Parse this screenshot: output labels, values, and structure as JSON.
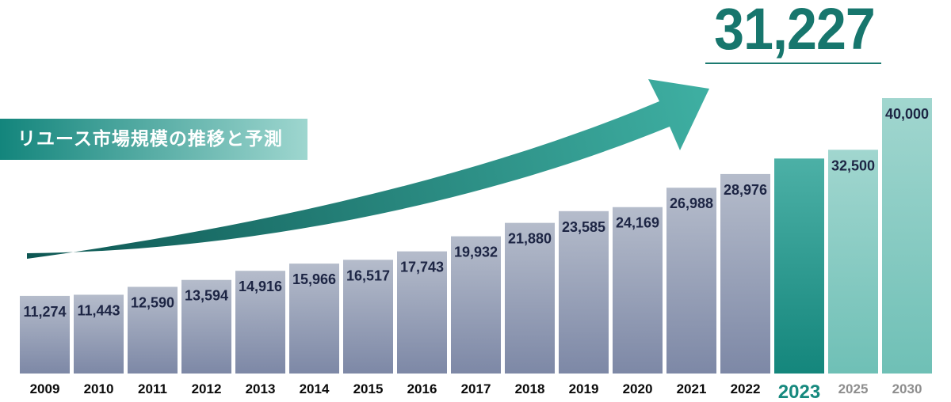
{
  "header": {
    "title": "リユース市場規模の推移と予測",
    "highlight_value": "31,227"
  },
  "colors": {
    "past_top": "#b5bccb",
    "past_bottom": "#7d88a6",
    "current_top": "#4cb0a6",
    "current_bottom": "#14867c",
    "forecast_top": "#a1d6cf",
    "forecast_bottom": "#6fc0b6",
    "label_dark": "#1d2544",
    "year_dark": "#0a0a0a",
    "year_current": "#16897e",
    "year_forecast": "#8e8e8e",
    "arrow_start": "#0d5652",
    "arrow_end": "#3fb0a3",
    "title_bg_start": "#13857c",
    "title_bg_end": "#9ed6cf",
    "highlight": "#17766d"
  },
  "chart_data": {
    "type": "bar",
    "title": "リユース市場規模の推移と予測",
    "categories": [
      "2009",
      "2010",
      "2011",
      "2012",
      "2013",
      "2014",
      "2015",
      "2016",
      "2017",
      "2018",
      "2019",
      "2020",
      "2021",
      "2022",
      "2023",
      "2025",
      "2030"
    ],
    "values": [
      11274,
      11443,
      12590,
      13594,
      14916,
      15966,
      16517,
      17743,
      19932,
      21880,
      23585,
      24169,
      26988,
      28976,
      31227,
      32500,
      40000
    ],
    "value_labels": [
      "11,274",
      "11,443",
      "12,590",
      "13,594",
      "14,916",
      "15,966",
      "16,517",
      "17,743",
      "19,932",
      "21,880",
      "23,585",
      "24,169",
      "26,988",
      "28,976",
      "",
      "32,500",
      "40,000"
    ],
    "kinds": [
      "past",
      "past",
      "past",
      "past",
      "past",
      "past",
      "past",
      "past",
      "past",
      "past",
      "past",
      "past",
      "past",
      "past",
      "current",
      "forecast",
      "forecast"
    ],
    "highlight": {
      "category": "2023",
      "value_label": "31,227"
    },
    "xlabel": "",
    "ylabel": "",
    "grid": false,
    "legend": "none"
  }
}
